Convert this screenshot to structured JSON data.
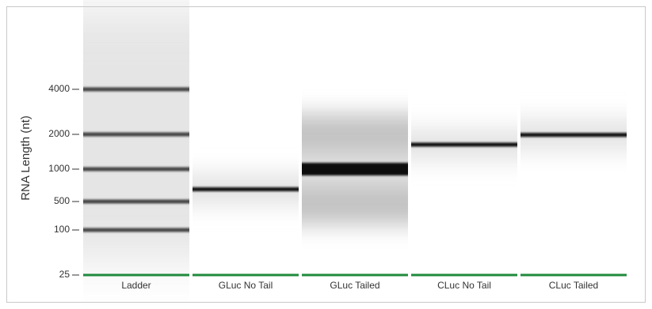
{
  "chart_data": {
    "type": "gel",
    "y_label": "RNA Length (nt)",
    "yticks": [
      4000,
      2000,
      1000,
      500,
      100,
      25
    ],
    "marker_size": 25,
    "marker_color": "#1f8a3c",
    "lanes": [
      {
        "name": "Ladder",
        "bands": [
          4000,
          2000,
          1000,
          500,
          100
        ]
      },
      {
        "name": "GLuc No Tail",
        "bands": [
          650
        ]
      },
      {
        "name": "GLuc Tailed",
        "bands": [
          1000
        ]
      },
      {
        "name": "CLuc No Tail",
        "bands": [
          1630
        ]
      },
      {
        "name": "CLuc Tailed",
        "bands": [
          1980
        ]
      }
    ]
  }
}
